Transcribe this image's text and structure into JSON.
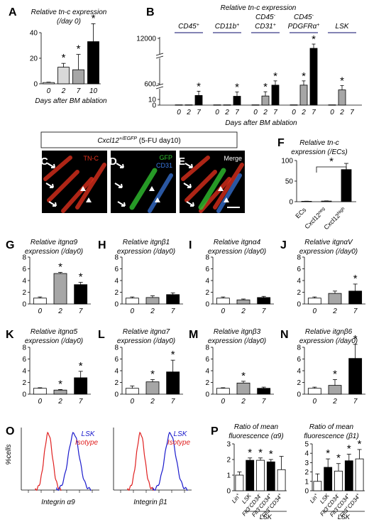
{
  "colors": {
    "white_bar": "#ffffff",
    "light_gray_bar": "#d9d9d9",
    "gray_bar": "#a6a6a6",
    "black_bar": "#000000",
    "header_line": "#5b5b9b",
    "tnc_red": "#e8321e",
    "gfp_green": "#30c030",
    "cd31_blue": "#3c7ce6",
    "isotype_red": "#e02020",
    "lsk_blue": "#1a1acc"
  },
  "panels": {
    "A": {
      "letter": "A"
    },
    "B": {
      "letter": "B"
    },
    "C": {
      "letter": "C"
    },
    "D": {
      "letter": "D"
    },
    "E": {
      "letter": "E"
    },
    "F": {
      "letter": "F"
    },
    "G": {
      "letter": "G"
    },
    "H": {
      "letter": "H"
    },
    "I": {
      "letter": "I"
    },
    "J": {
      "letter": "J"
    },
    "K": {
      "letter": "K"
    },
    "L": {
      "letter": "L"
    },
    "M": {
      "letter": "M"
    },
    "N": {
      "letter": "N"
    },
    "O": {
      "letter": "O"
    },
    "P": {
      "letter": "P"
    }
  },
  "micro": {
    "header": "Cxcl12+/EGFP (5-FU day10)",
    "header_gene": "Cxcl12",
    "header_sup": "+/EGFP",
    "header_rest": " (5-FU day10)",
    "c_label": "TN-C",
    "d_label_gfp": "GFP",
    "d_label_cd31": "CD31",
    "e_label": "Merge"
  },
  "flow": {
    "ylabel": "%cells",
    "left_xlabel": "Integrin α9",
    "right_xlabel": "Integrin β1",
    "legend_lsk": "LSK",
    "legend_isotype": "Isotype"
  },
  "chart_data": [
    {
      "panel": "A",
      "type": "bar",
      "title": "Relative tn-c expression",
      "subtitle": "(/day 0)",
      "categories": [
        "0",
        "2",
        "7",
        "10"
      ],
      "values": [
        1,
        13,
        11,
        33
      ],
      "errors": [
        0.3,
        3,
        12,
        14
      ],
      "significant": [
        false,
        true,
        true,
        true
      ],
      "ylim": [
        0,
        40
      ],
      "yticks": [
        "0",
        "20",
        "40"
      ],
      "xlabel": "Days after BM ablation"
    },
    {
      "panel": "B",
      "type": "bar",
      "title": "Relative tn-c expression",
      "xlabel": "Days after BM ablation",
      "yticks": [
        "0",
        "10",
        "600",
        "12000"
      ],
      "axis_breaks": true,
      "groups": [
        {
          "name": "CD45+",
          "label_main": "CD45",
          "label_sup": "+",
          "label_line2": "",
          "label_sup2": "",
          "categories": [
            "0",
            "2",
            "7"
          ],
          "values": [
            0.5,
            0.5,
            160
          ],
          "significant": [
            false,
            false,
            true
          ]
        },
        {
          "name": "CD11b+",
          "label_main": "CD11b",
          "label_sup": "+",
          "label_line2": "",
          "label_sup2": "",
          "categories": [
            "0",
            "2",
            "7"
          ],
          "values": [
            0.5,
            0.5,
            130
          ],
          "significant": [
            false,
            false,
            true
          ]
        },
        {
          "name": "CD45- CD31+",
          "label_main": "CD45",
          "label_sup": "-",
          "label_line2": "CD31",
          "label_sup2": "+",
          "categories": [
            "0",
            "2",
            "7"
          ],
          "values": [
            0.5,
            140,
            550
          ],
          "significant": [
            false,
            true,
            true
          ]
        },
        {
          "name": "CD45- PDGFRa+",
          "label_main": "CD45",
          "label_sup": "-",
          "label_line2": "PDGFRα",
          "label_sup2": "+",
          "categories": [
            "0",
            "2",
            "7"
          ],
          "values": [
            0.5,
            550,
            9500
          ],
          "significant": [
            false,
            true,
            true
          ]
        },
        {
          "name": "LSK",
          "label_main": "LSK",
          "label_sup": "",
          "label_line2": "",
          "label_sup2": "",
          "categories": [
            "0",
            "2",
            "7"
          ],
          "values": [
            0.5,
            370,
            0
          ],
          "significant": [
            false,
            true,
            false
          ]
        }
      ]
    },
    {
      "panel": "F",
      "type": "bar",
      "title": "Relative tn-c",
      "subtitle": "expression (/ECs)",
      "categories": [
        "ECs",
        "Cxcl12neg",
        "Cxcl12high"
      ],
      "category_main": [
        "ECs",
        "Cxcl12",
        "Cxcl12"
      ],
      "category_sup": [
        "",
        "neg",
        "high"
      ],
      "values": [
        1,
        1.5,
        78
      ],
      "errors": [
        0.3,
        0.5,
        15
      ],
      "ylim": [
        0,
        100
      ],
      "yticks": [
        "0",
        "50",
        "100"
      ],
      "significance": "*"
    },
    {
      "panel": "G",
      "type": "bar",
      "title": "Relative itgnα9",
      "subtitle": "expression (/day0)",
      "categories": [
        "0",
        "2",
        "7"
      ],
      "values": [
        1,
        5.2,
        3.3
      ],
      "errors": [
        0.2,
        0.2,
        0.4
      ],
      "significant": [
        false,
        true,
        true
      ],
      "ylim": [
        0,
        8
      ],
      "yticks": [
        "0",
        "2",
        "4",
        "6",
        "8"
      ]
    },
    {
      "panel": "H",
      "type": "bar",
      "title": "Relative itgnβ1",
      "subtitle": "expression (/day0)",
      "categories": [
        "0",
        "2",
        "7"
      ],
      "values": [
        1,
        1.1,
        1.6
      ],
      "errors": [
        0.2,
        0.3,
        0.3
      ],
      "significant": [
        false,
        false,
        false
      ],
      "ylim": [
        0,
        8
      ],
      "yticks": [
        "0",
        "2",
        "4",
        "6",
        "8"
      ]
    },
    {
      "panel": "I",
      "type": "bar",
      "title": "Relative itgnα4",
      "subtitle": "expression (/day0)",
      "categories": [
        "0",
        "2",
        "7"
      ],
      "values": [
        1,
        0.7,
        1.1
      ],
      "errors": [
        0.2,
        0.15,
        0.2
      ],
      "significant": [
        false,
        false,
        false
      ],
      "ylim": [
        0,
        8
      ],
      "yticks": [
        "0",
        "2",
        "4",
        "6",
        "8"
      ]
    },
    {
      "panel": "J",
      "type": "bar",
      "title": "Relative itgnαV",
      "subtitle": "expression (/day0)",
      "categories": [
        "0",
        "2",
        "7"
      ],
      "values": [
        1,
        1.8,
        2.2
      ],
      "errors": [
        0.2,
        0.4,
        1.2
      ],
      "significant": [
        false,
        false,
        true
      ],
      "ylim": [
        0,
        8
      ],
      "yticks": [
        "0",
        "2",
        "4",
        "6",
        "8"
      ]
    },
    {
      "panel": "K",
      "type": "bar",
      "title": "Relative itgnα5",
      "subtitle": "expression (/day0)",
      "categories": [
        "0",
        "2",
        "7"
      ],
      "values": [
        1,
        0.7,
        2.8
      ],
      "errors": [
        0.1,
        0.1,
        1.1
      ],
      "significant": [
        false,
        true,
        true
      ],
      "ylim": [
        0,
        8
      ],
      "yticks": [
        "0",
        "2",
        "4",
        "6",
        "8"
      ]
    },
    {
      "panel": "L",
      "type": "bar",
      "title": "Relative itgnα7",
      "subtitle": "expression (/day0)",
      "categories": [
        "0",
        "2",
        "7"
      ],
      "values": [
        1,
        2.1,
        3.8
      ],
      "errors": [
        0.4,
        0.4,
        2.0
      ],
      "significant": [
        false,
        true,
        true
      ],
      "ylim": [
        0,
        8
      ],
      "yticks": [
        "0",
        "2",
        "4",
        "6",
        "8"
      ]
    },
    {
      "panel": "M",
      "type": "bar",
      "title": "Relative itgnβ3",
      "subtitle": "expression (/day0)",
      "categories": [
        "0",
        "2",
        "7"
      ],
      "values": [
        1,
        1.9,
        1.0
      ],
      "errors": [
        0.1,
        0.3,
        0.2
      ],
      "significant": [
        false,
        true,
        false
      ],
      "ylim": [
        0,
        8
      ],
      "yticks": [
        "0",
        "2",
        "4",
        "6",
        "8"
      ]
    },
    {
      "panel": "N",
      "type": "bar",
      "title": "Relative itgnβ6",
      "subtitle": "expression (/day0)",
      "categories": [
        "0",
        "2",
        "7"
      ],
      "values": [
        1,
        1.5,
        6.1
      ],
      "errors": [
        0.2,
        1.0,
        2.4
      ],
      "significant": [
        false,
        true,
        true
      ],
      "ylim": [
        0,
        8
      ],
      "yticks": [
        "0",
        "2",
        "4",
        "6",
        "8"
      ]
    },
    {
      "panel": "P-left",
      "type": "bar",
      "title": "Ratio of mean",
      "subtitle": "fluorescence (α9)",
      "categories": [
        "Lin+",
        "LSK",
        "Flt3-CD34-",
        "Flt3-CD34+",
        "Flt3+CD34+"
      ],
      "category_parts": [
        [
          "Lin",
          "+",
          "",
          ""
        ],
        [
          "LSK",
          "",
          "",
          ""
        ],
        [
          "Flt3",
          "-",
          "CD34",
          "-"
        ],
        [
          "Flt3",
          "-",
          "CD34",
          "+"
        ],
        [
          "Flt3",
          "+",
          "CD34",
          "+"
        ]
      ],
      "values": [
        1,
        1.95,
        1.95,
        1.85,
        1.35
      ],
      "errors": [
        0.2,
        0.15,
        0.15,
        0.15,
        0.85
      ],
      "significant": [
        false,
        true,
        true,
        true,
        false
      ],
      "ylim": [
        0,
        3
      ],
      "yticks": [
        "0",
        "1",
        "2",
        "3"
      ],
      "group_label": "LSK"
    },
    {
      "panel": "P-right",
      "type": "bar",
      "title": "Ratio of mean",
      "subtitle": "fluorescence (β1)",
      "categories": [
        "Lin+",
        "LSK",
        "Flt3-CD34-",
        "Flt3-CD34+",
        "Flt3+CD34+"
      ],
      "category_parts": [
        [
          "Lin",
          "+",
          "",
          ""
        ],
        [
          "LSK",
          "",
          "",
          ""
        ],
        [
          "Flt3",
          "-",
          "CD34",
          "-"
        ],
        [
          "Flt3",
          "-",
          "CD34",
          "+"
        ],
        [
          "Flt3",
          "+",
          "CD34",
          "+"
        ]
      ],
      "values": [
        1,
        2.5,
        2.1,
        3.2,
        3.4
      ],
      "errors": [
        0.8,
        0.9,
        0.8,
        0.7,
        1.0
      ],
      "significant": [
        false,
        true,
        true,
        true,
        true
      ],
      "ylim": [
        0,
        5
      ],
      "yticks": [
        "0",
        "1",
        "2",
        "3",
        "4",
        "5"
      ],
      "group_label": "LSK"
    }
  ]
}
